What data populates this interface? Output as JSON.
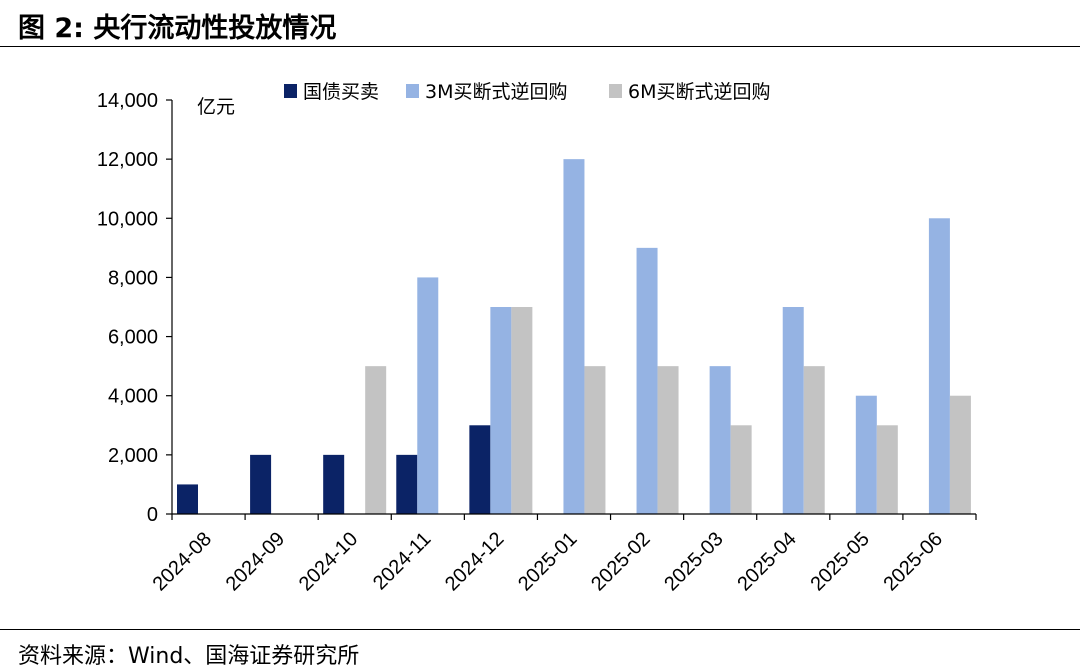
{
  "figure": {
    "title": "图 2:  央行流动性投放情况",
    "source": "资料来源：Wind、国海证券研究所"
  },
  "colors": {
    "series": [
      "#0b2366",
      "#95b3e3",
      "#c3c3c3"
    ],
    "axis": "#000000"
  },
  "chart_data": {
    "type": "bar",
    "unit_label": "亿元",
    "categories": [
      "2024-08",
      "2024-09",
      "2024-10",
      "2024-11",
      "2024-12",
      "2025-01",
      "2025-02",
      "2025-03",
      "2025-04",
      "2025-05",
      "2025-06"
    ],
    "series": [
      {
        "name": "国债买卖",
        "values": [
          1000,
          2000,
          2000,
          2000,
          3000,
          null,
          null,
          null,
          null,
          null,
          null
        ]
      },
      {
        "name": "3M买断式逆回购",
        "values": [
          null,
          null,
          null,
          8000,
          7000,
          12000,
          9000,
          5000,
          7000,
          4000,
          10000
        ]
      },
      {
        "name": "6M买断式逆回购",
        "values": [
          null,
          null,
          5000,
          null,
          7000,
          5000,
          5000,
          3000,
          5000,
          3000,
          4000
        ]
      }
    ],
    "yticks": [
      "0",
      "2,000",
      "4,000",
      "6,000",
      "8,000",
      "10,000",
      "12,000",
      "14,000"
    ],
    "ylim": [
      0,
      14000
    ],
    "grid": false,
    "legend": "top"
  }
}
